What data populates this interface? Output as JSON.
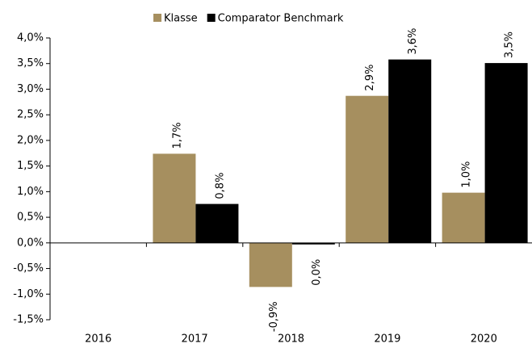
{
  "chart_data": {
    "type": "bar",
    "categories": [
      "2016",
      "2017",
      "2018",
      "2019",
      "2020"
    ],
    "series": [
      {
        "name": "Klasse",
        "color": "#a68f5f",
        "values": [
          null,
          1.74,
          -0.86,
          2.87,
          0.98
        ],
        "value_labels": [
          null,
          "1,7%",
          "-0,9%",
          "2,9%",
          "1,0%"
        ]
      },
      {
        "name": "Comparator Benchmark",
        "color": "#000000",
        "values": [
          null,
          0.76,
          -0.03,
          3.58,
          3.51
        ],
        "value_labels": [
          null,
          "0,8%",
          "0,0%",
          "3,6%",
          "3,5%"
        ]
      }
    ],
    "ylim": [
      -1.5,
      4.0
    ],
    "yticks": [
      {
        "value": -1.5,
        "label": "-1,5%"
      },
      {
        "value": -1.0,
        "label": "-1,0%"
      },
      {
        "value": -0.5,
        "label": "-0,5%"
      },
      {
        "value": 0.0,
        "label": "0,0%"
      },
      {
        "value": 0.5,
        "label": "0,5%"
      },
      {
        "value": 1.0,
        "label": "1,0%"
      },
      {
        "value": 1.5,
        "label": "1,5%"
      },
      {
        "value": 2.0,
        "label": "2,0%"
      },
      {
        "value": 2.5,
        "label": "2,5%"
      },
      {
        "value": 3.0,
        "label": "3,0%"
      },
      {
        "value": 3.5,
        "label": "3,5%"
      },
      {
        "value": 4.0,
        "label": "4,0%"
      }
    ],
    "legend": "top"
  }
}
